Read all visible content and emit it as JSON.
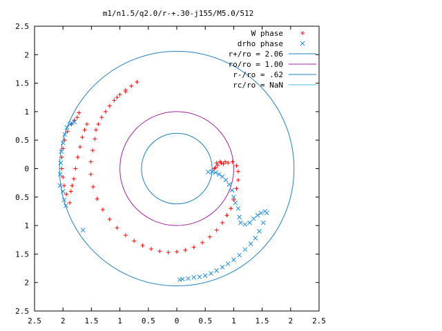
{
  "chart_data": {
    "type": "scatter",
    "title": "m1/n1.5/q2.0/r-+.30-j155/M5.0/512",
    "xlabel": "",
    "ylabel": "",
    "xlim": [
      -2.5,
      2.5
    ],
    "ylim": [
      -2.5,
      2.5
    ],
    "x_tick_values": [
      -2.5,
      -2,
      -1.5,
      -1,
      -0.5,
      0,
      0.5,
      1,
      1.5,
      2,
      2.5
    ],
    "x_tick_labels": [
      "2.5",
      "2",
      "1.5",
      "1",
      "0.5",
      "0",
      "0.5",
      "1",
      "1.5",
      "2",
      "2.5"
    ],
    "y_tick_values": [
      2.5,
      2,
      1.5,
      1,
      0.5,
      0,
      -0.5,
      -1,
      -1.5,
      -2,
      -2.5
    ],
    "y_tick_labels": [
      "2.5",
      "2",
      "1.5",
      "1",
      "0.5",
      "0",
      "0.5",
      "1",
      "1.5",
      "2",
      "2.5"
    ],
    "grid": false,
    "legend_position": "top-right",
    "circles": [
      {
        "label": "r+/ro = 2.06",
        "r": 2.06,
        "color": "#1a80c0"
      },
      {
        "label": "ro/ro = 1.00",
        "r": 1.0,
        "color": "#a020a0"
      },
      {
        "label": "r-/ro = .62",
        "r": 0.62,
        "color": "#1a80c0"
      },
      {
        "label": "rc/ro = NaN",
        "r": null,
        "color": "#40c0e0"
      }
    ],
    "series": [
      {
        "name": "W phase",
        "marker": "+",
        "color": "#ff0000",
        "points": [
          [
            0.85,
            0.12
          ],
          [
            0.78,
            0.1
          ],
          [
            0.72,
            0.06
          ],
          [
            0.68,
            0.02
          ],
          [
            0.66,
            0.0
          ],
          [
            0.7,
            0.1
          ],
          [
            0.76,
            0.12
          ],
          [
            0.82,
            0.08
          ],
          [
            0.9,
            0.1
          ],
          [
            0.98,
            0.12
          ],
          [
            1.05,
            0.05
          ],
          [
            1.08,
            -0.05
          ],
          [
            1.08,
            -0.2
          ],
          [
            1.05,
            -0.35
          ],
          [
            1.0,
            -0.55
          ],
          [
            0.95,
            -0.7
          ],
          [
            0.88,
            -0.82
          ],
          [
            0.8,
            -0.95
          ],
          [
            0.7,
            -1.08
          ],
          [
            0.58,
            -1.2
          ],
          [
            0.45,
            -1.3
          ],
          [
            0.3,
            -1.38
          ],
          [
            0.15,
            -1.43
          ],
          [
            0.0,
            -1.46
          ],
          [
            -0.15,
            -1.47
          ],
          [
            -0.3,
            -1.45
          ],
          [
            -0.45,
            -1.41
          ],
          [
            -0.6,
            -1.35
          ],
          [
            -0.75,
            -1.27
          ],
          [
            -0.9,
            -1.17
          ],
          [
            -1.05,
            -1.04
          ],
          [
            -1.18,
            -0.89
          ],
          [
            -1.3,
            -0.72
          ],
          [
            -1.4,
            -0.53
          ],
          [
            -1.47,
            -0.32
          ],
          [
            -1.51,
            -0.1
          ],
          [
            -1.51,
            0.12
          ],
          [
            -1.48,
            0.32
          ],
          [
            -1.44,
            0.52
          ],
          [
            -1.42,
            0.68
          ],
          [
            -1.38,
            0.78
          ],
          [
            -1.32,
            0.9
          ],
          [
            -1.25,
            1.0
          ],
          [
            -1.18,
            1.1
          ],
          [
            -1.1,
            1.2
          ],
          [
            -1.0,
            1.3
          ],
          [
            -0.9,
            1.38
          ],
          [
            -0.8,
            1.45
          ],
          [
            -0.7,
            1.52
          ],
          [
            -0.9,
            1.35
          ],
          [
            -1.05,
            1.25
          ],
          [
            -1.58,
            0.78
          ],
          [
            -1.62,
            0.68
          ],
          [
            -1.66,
            0.55
          ],
          [
            -1.7,
            0.38
          ],
          [
            -1.74,
            0.2
          ],
          [
            -1.78,
            0.0
          ],
          [
            -1.81,
            -0.18
          ],
          [
            -1.84,
            -0.3
          ],
          [
            -1.86,
            -0.4
          ],
          [
            -1.72,
            0.98
          ],
          [
            -1.75,
            0.9
          ],
          [
            -1.8,
            0.85
          ],
          [
            -1.85,
            0.78
          ],
          [
            -1.92,
            0.65
          ],
          [
            -1.97,
            0.5
          ],
          [
            -2.0,
            0.35
          ],
          [
            -2.02,
            0.2
          ],
          [
            -2.02,
            0.0
          ],
          [
            -2.0,
            -0.15
          ],
          [
            -1.98,
            -0.3
          ],
          [
            -1.94,
            -0.45
          ],
          [
            -1.88,
            -0.6
          ]
        ]
      },
      {
        "name": "drho phase",
        "marker": "x",
        "color": "#1a8ce6",
        "points": [
          [
            0.55,
            -0.06
          ],
          [
            0.62,
            -0.05
          ],
          [
            0.68,
            -0.07
          ],
          [
            0.74,
            -0.1
          ],
          [
            0.8,
            -0.14
          ],
          [
            0.86,
            -0.2
          ],
          [
            0.92,
            -0.28
          ],
          [
            0.97,
            -0.38
          ],
          [
            1.0,
            -0.5
          ],
          [
            1.03,
            -0.6
          ],
          [
            1.08,
            -0.7
          ],
          [
            1.1,
            -0.85
          ],
          [
            1.12,
            -0.95
          ],
          [
            1.2,
            -0.98
          ],
          [
            1.28,
            -0.95
          ],
          [
            1.35,
            -0.88
          ],
          [
            1.42,
            -0.82
          ],
          [
            1.48,
            -0.78
          ],
          [
            1.55,
            -0.75
          ],
          [
            1.58,
            -0.78
          ],
          [
            1.52,
            -0.95
          ],
          [
            1.45,
            -1.1
          ],
          [
            1.38,
            -1.22
          ],
          [
            1.3,
            -1.32
          ],
          [
            1.2,
            -1.42
          ],
          [
            1.1,
            -1.52
          ],
          [
            1.0,
            -1.6
          ],
          [
            0.9,
            -1.67
          ],
          [
            0.8,
            -1.73
          ],
          [
            0.7,
            -1.79
          ],
          [
            0.6,
            -1.84
          ],
          [
            0.5,
            -1.88
          ],
          [
            0.4,
            -1.9
          ],
          [
            0.3,
            -1.91
          ],
          [
            0.2,
            -1.93
          ],
          [
            0.1,
            -1.94
          ],
          [
            0.05,
            -1.95
          ],
          [
            -1.65,
            -1.08
          ],
          [
            -1.95,
            -0.65
          ],
          [
            -1.98,
            -0.55
          ],
          [
            -2.0,
            -0.4
          ],
          [
            -2.05,
            -0.3
          ],
          [
            -2.05,
            -0.1
          ],
          [
            -2.04,
            0.1
          ],
          [
            -2.03,
            0.3
          ],
          [
            -2.0,
            0.45
          ],
          [
            -1.97,
            0.6
          ],
          [
            -1.93,
            0.72
          ],
          [
            -1.88,
            0.78
          ],
          [
            -1.85,
            0.8
          ],
          [
            -1.8,
            0.82
          ]
        ]
      }
    ]
  }
}
